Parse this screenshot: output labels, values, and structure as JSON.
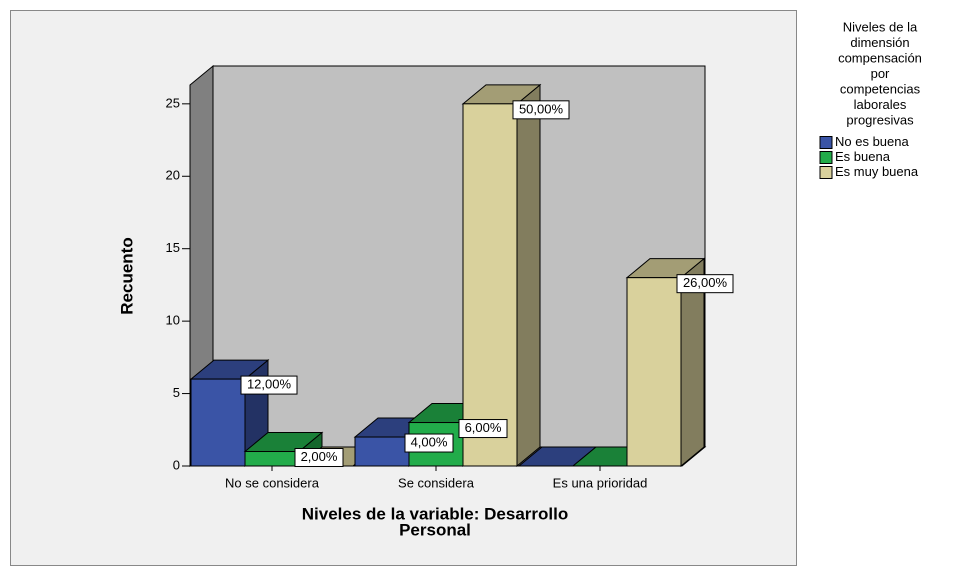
{
  "chart_data": {
    "type": "bar3d",
    "categories": [
      "No se considera",
      "Se considera",
      "Es una prioridad"
    ],
    "series": [
      {
        "name": "No es buena",
        "color": "#3a54a6",
        "values": [
          6,
          2,
          0
        ],
        "value_labels": [
          "12,00%",
          "4,00%",
          null
        ]
      },
      {
        "name": "Es buena",
        "color": "#22ac4a",
        "values": [
          1,
          3,
          0
        ],
        "value_labels": [
          "2,00%",
          "6,00%",
          null
        ]
      },
      {
        "name": "Es muy buena",
        "color": "#d9d19c",
        "values": [
          0,
          25,
          13
        ],
        "value_labels": [
          null,
          "50,00%",
          "26,00%"
        ]
      }
    ],
    "ylim": [
      0,
      26.3
    ],
    "yticks": [
      0,
      5,
      10,
      15,
      20,
      25
    ],
    "y_label": "Recuento",
    "x_label": [
      "Niveles de la variable: Desarrollo",
      "Personal"
    ],
    "legend_title": [
      "Niveles de la",
      "dimensión",
      "compensación",
      "por",
      "competencias",
      "laborales",
      "progresivas"
    ]
  }
}
